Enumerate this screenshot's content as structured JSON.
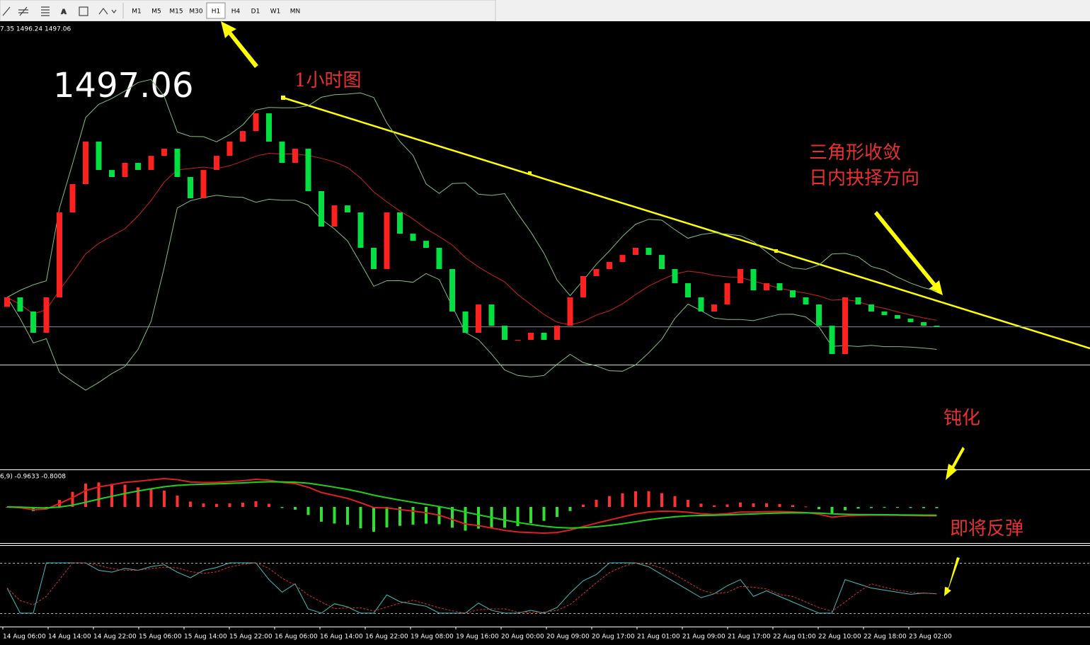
{
  "toolbar": {
    "timeframes": [
      "M1",
      "M5",
      "M15",
      "M30",
      "H1",
      "H4",
      "D1",
      "W1",
      "MN"
    ],
    "active": "H1"
  },
  "chart_data": {
    "type": "candlestick",
    "header": "7.35 1496.24 1497.06",
    "price": 1497.06,
    "annotations": [
      "1小时图",
      "三角形收敛",
      "日内抉择方向",
      "钝化",
      "即将反弹"
    ],
    "macd_label": "6,9) -0.9633 -0.8008",
    "x_labels": [
      "14 Aug 06:00",
      "14 Aug 14:00",
      "14 Aug 22:00",
      "15 Aug 06:00",
      "15 Aug 14:00",
      "15 Aug 22:00",
      "16 Aug 06:00",
      "16 Aug 14:00",
      "16 Aug 22:00",
      "19 Aug 08:00",
      "19 Aug 16:00",
      "20 Aug 00:00",
      "20 Aug 09:00",
      "20 Aug 17:00",
      "21 Aug 01:00",
      "21 Aug 09:00",
      "21 Aug 17:00",
      "22 Aug 01:00",
      "22 Aug 10:00",
      "22 Aug 18:00",
      "23 Aug 02:00"
    ],
    "ylim": [
      1492,
      1534
    ],
    "up_color": "#ff2020",
    "down_color": "#00e040",
    "open": [
      1499.5,
      1500.66,
      1498.93,
      1496.33,
      1500.66,
      1511.05,
      1514.51,
      1519.71,
      1516.24,
      1515.38,
      1517.11,
      1516.24,
      1517.97,
      1518.84,
      1515.38,
      1512.78,
      1516.24,
      1517.97,
      1519.71,
      1521.0,
      1523.17,
      1519.71,
      1517.11,
      1518.84,
      1513.65,
      1509.32,
      1511.91,
      1511.05,
      1506.72,
      1504.12,
      1511.05,
      1508.45,
      1507.58,
      1506.72,
      1504.12,
      1498.93,
      1496.33,
      1499.79,
      1497.19,
      1495.46,
      1495.46,
      1496.33,
      1495.46,
      1497.19,
      1500.66,
      1503.26,
      1504.12,
      1504.99,
      1505.85,
      1506.72,
      1505.85,
      1504.12,
      1502.39,
      1500.66,
      1498.93,
      1499.79,
      1502.39,
      1504.12,
      1501.52,
      1502.39,
      1501.52,
      1500.66,
      1499.79,
      1497.19,
      1493.73,
      1500.66,
      1499.79,
      1498.93,
      1498.49,
      1498.06,
      1497.63,
      1497.19
    ],
    "close": [
      1500.66,
      1498.93,
      1496.33,
      1500.66,
      1511.05,
      1514.51,
      1519.71,
      1516.24,
      1515.38,
      1517.11,
      1516.24,
      1517.97,
      1518.84,
      1515.38,
      1512.78,
      1516.24,
      1517.97,
      1519.71,
      1521.0,
      1523.17,
      1519.71,
      1517.11,
      1518.84,
      1513.65,
      1509.32,
      1511.91,
      1511.05,
      1506.72,
      1504.12,
      1511.05,
      1508.45,
      1507.58,
      1506.72,
      1504.12,
      1498.93,
      1496.33,
      1499.79,
      1497.19,
      1495.46,
      1495.46,
      1496.33,
      1495.46,
      1497.19,
      1500.66,
      1503.26,
      1504.12,
      1504.99,
      1505.85,
      1506.72,
      1505.85,
      1504.12,
      1502.39,
      1500.66,
      1498.93,
      1499.79,
      1502.39,
      1504.12,
      1501.52,
      1502.39,
      1501.52,
      1500.66,
      1499.79,
      1497.19,
      1493.73,
      1500.66,
      1499.79,
      1498.93,
      1498.49,
      1498.06,
      1497.63,
      1497.19,
      1497.06
    ]
  }
}
